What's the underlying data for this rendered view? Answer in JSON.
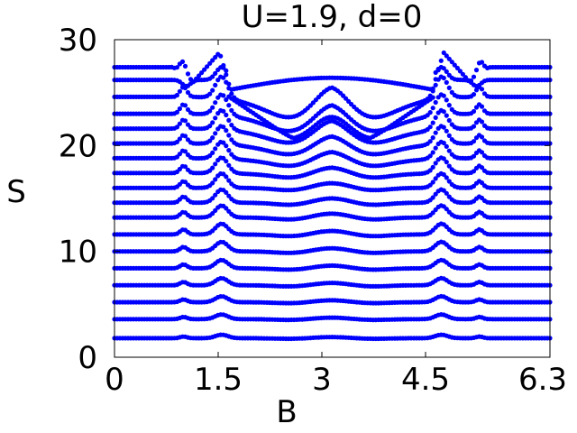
{
  "chart_data": {
    "type": "scatter",
    "title": "U=1.9, d=0",
    "xlabel": "B",
    "ylabel": "S",
    "xlim": [
      0,
      6.3
    ],
    "ylim": [
      0,
      30
    ],
    "xticks": [
      "0",
      "1.5",
      "3",
      "4.5",
      "6.3"
    ],
    "xtick_values": [
      0,
      1.5,
      3,
      4.5,
      6.3
    ],
    "yticks": [
      "0",
      "10",
      "20",
      "30"
    ],
    "ytick_values": [
      0,
      10,
      20,
      30
    ],
    "grid": false,
    "marker_color": "#0000ff",
    "curve_baselines": [
      1.8,
      3.6,
      5.2,
      6.8,
      8.4,
      10.0,
      11.6,
      13.2,
      14.6,
      16.0,
      17.4,
      18.8,
      20.2,
      21.6,
      23.0,
      24.6,
      26.2,
      27.4
    ],
    "landmarks": {
      "peak_left_B": 1.55,
      "peak_right_B": 4.74,
      "side_peak_left_B": 1.0,
      "side_peak_right_B": 5.3,
      "center_B": 3.14,
      "top_curve_peak_S": 28.8,
      "top_plateau_S": 26.2,
      "inner_min_S": 20.5,
      "inner_center_S": 22.7
    }
  }
}
